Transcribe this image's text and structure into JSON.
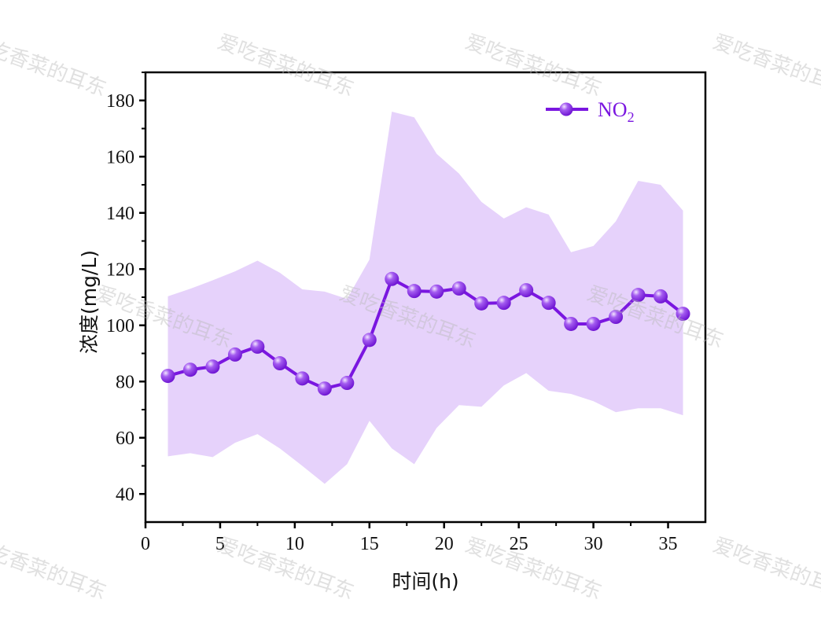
{
  "watermark": "爱吃香菜的耳东",
  "chart_data": {
    "type": "line",
    "title": "",
    "xlabel": "时间(h)",
    "ylabel": "浓度(mg/L)",
    "xlim": [
      0,
      37.5
    ],
    "ylim": [
      30,
      190
    ],
    "xticks": [
      0,
      5,
      10,
      15,
      20,
      25,
      30,
      35
    ],
    "yticks": [
      40,
      60,
      80,
      100,
      120,
      140,
      160,
      180
    ],
    "grid": false,
    "legend": {
      "position": "top-right",
      "label_main": "NO",
      "label_sub": "2"
    },
    "colors": {
      "line": "#7a16e0",
      "band": "#e6d2fb",
      "marker_light": "#e4c8ff"
    },
    "x": [
      1.5,
      3,
      4.5,
      6,
      7.5,
      9,
      10.5,
      12,
      13.5,
      15,
      16.5,
      18,
      19.5,
      21,
      22.5,
      24,
      25.5,
      27,
      28.5,
      30,
      31.5,
      33,
      34.5,
      36
    ],
    "series": [
      {
        "name": "NO2",
        "values": [
          82,
          84.2,
          85.3,
          89.6,
          92.4,
          86.5,
          81.1,
          77.5,
          79.5,
          94.8,
          116.5,
          112.2,
          112,
          113.1,
          107.8,
          108,
          112.5,
          108,
          100.5,
          100.5,
          103,
          110.8,
          110.3,
          104.1
        ]
      },
      {
        "name": "NO2 upper",
        "values": [
          110.3,
          113,
          116,
          119.2,
          123,
          118.7,
          112.8,
          112,
          109.4,
          123.4,
          176,
          174,
          161,
          154,
          143.9,
          138,
          142,
          139.4,
          126,
          128.2,
          137,
          151.4,
          150,
          140.8
        ]
      },
      {
        "name": "NO2 lower",
        "values": [
          53.4,
          54.5,
          53.1,
          58.2,
          61.3,
          56.2,
          50,
          43.6,
          50.6,
          66,
          56.2,
          50.6,
          63.5,
          71.6,
          71,
          78.6,
          83,
          76.7,
          75.6,
          73,
          69.1,
          70.5,
          70.5,
          68
        ]
      }
    ]
  }
}
